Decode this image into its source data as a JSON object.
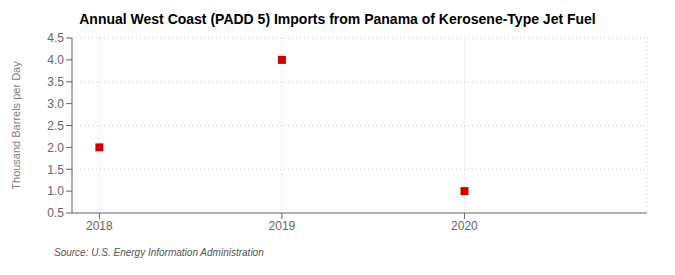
{
  "chart_data": {
    "type": "scatter",
    "title": "Annual West Coast (PADD 5) Imports from Panama of Kerosene-Type Jet Fuel",
    "ylabel": "Thousand Barrels per Day",
    "annotations": [
      "Source: U.S. Energy Information Administration"
    ],
    "x": [
      2018,
      2019,
      2020
    ],
    "values": [
      2.0,
      4.0,
      1.0
    ],
    "color": "#cc0000",
    "marker": "square",
    "xlim": [
      2017.85,
      2021.0
    ],
    "ylim": [
      0.5,
      4.5
    ],
    "xticks": [
      2018,
      2019,
      2020
    ],
    "yticks": [
      0.5,
      {
        "value": 1,
        "label": "1.0"
      },
      1.5,
      {
        "value": 2,
        "label": "2.0"
      },
      2.5,
      {
        "value": 3,
        "label": "3.0"
      },
      3.5,
      {
        "value": 4,
        "label": "4.0"
      },
      4.5
    ],
    "grid": true
  }
}
